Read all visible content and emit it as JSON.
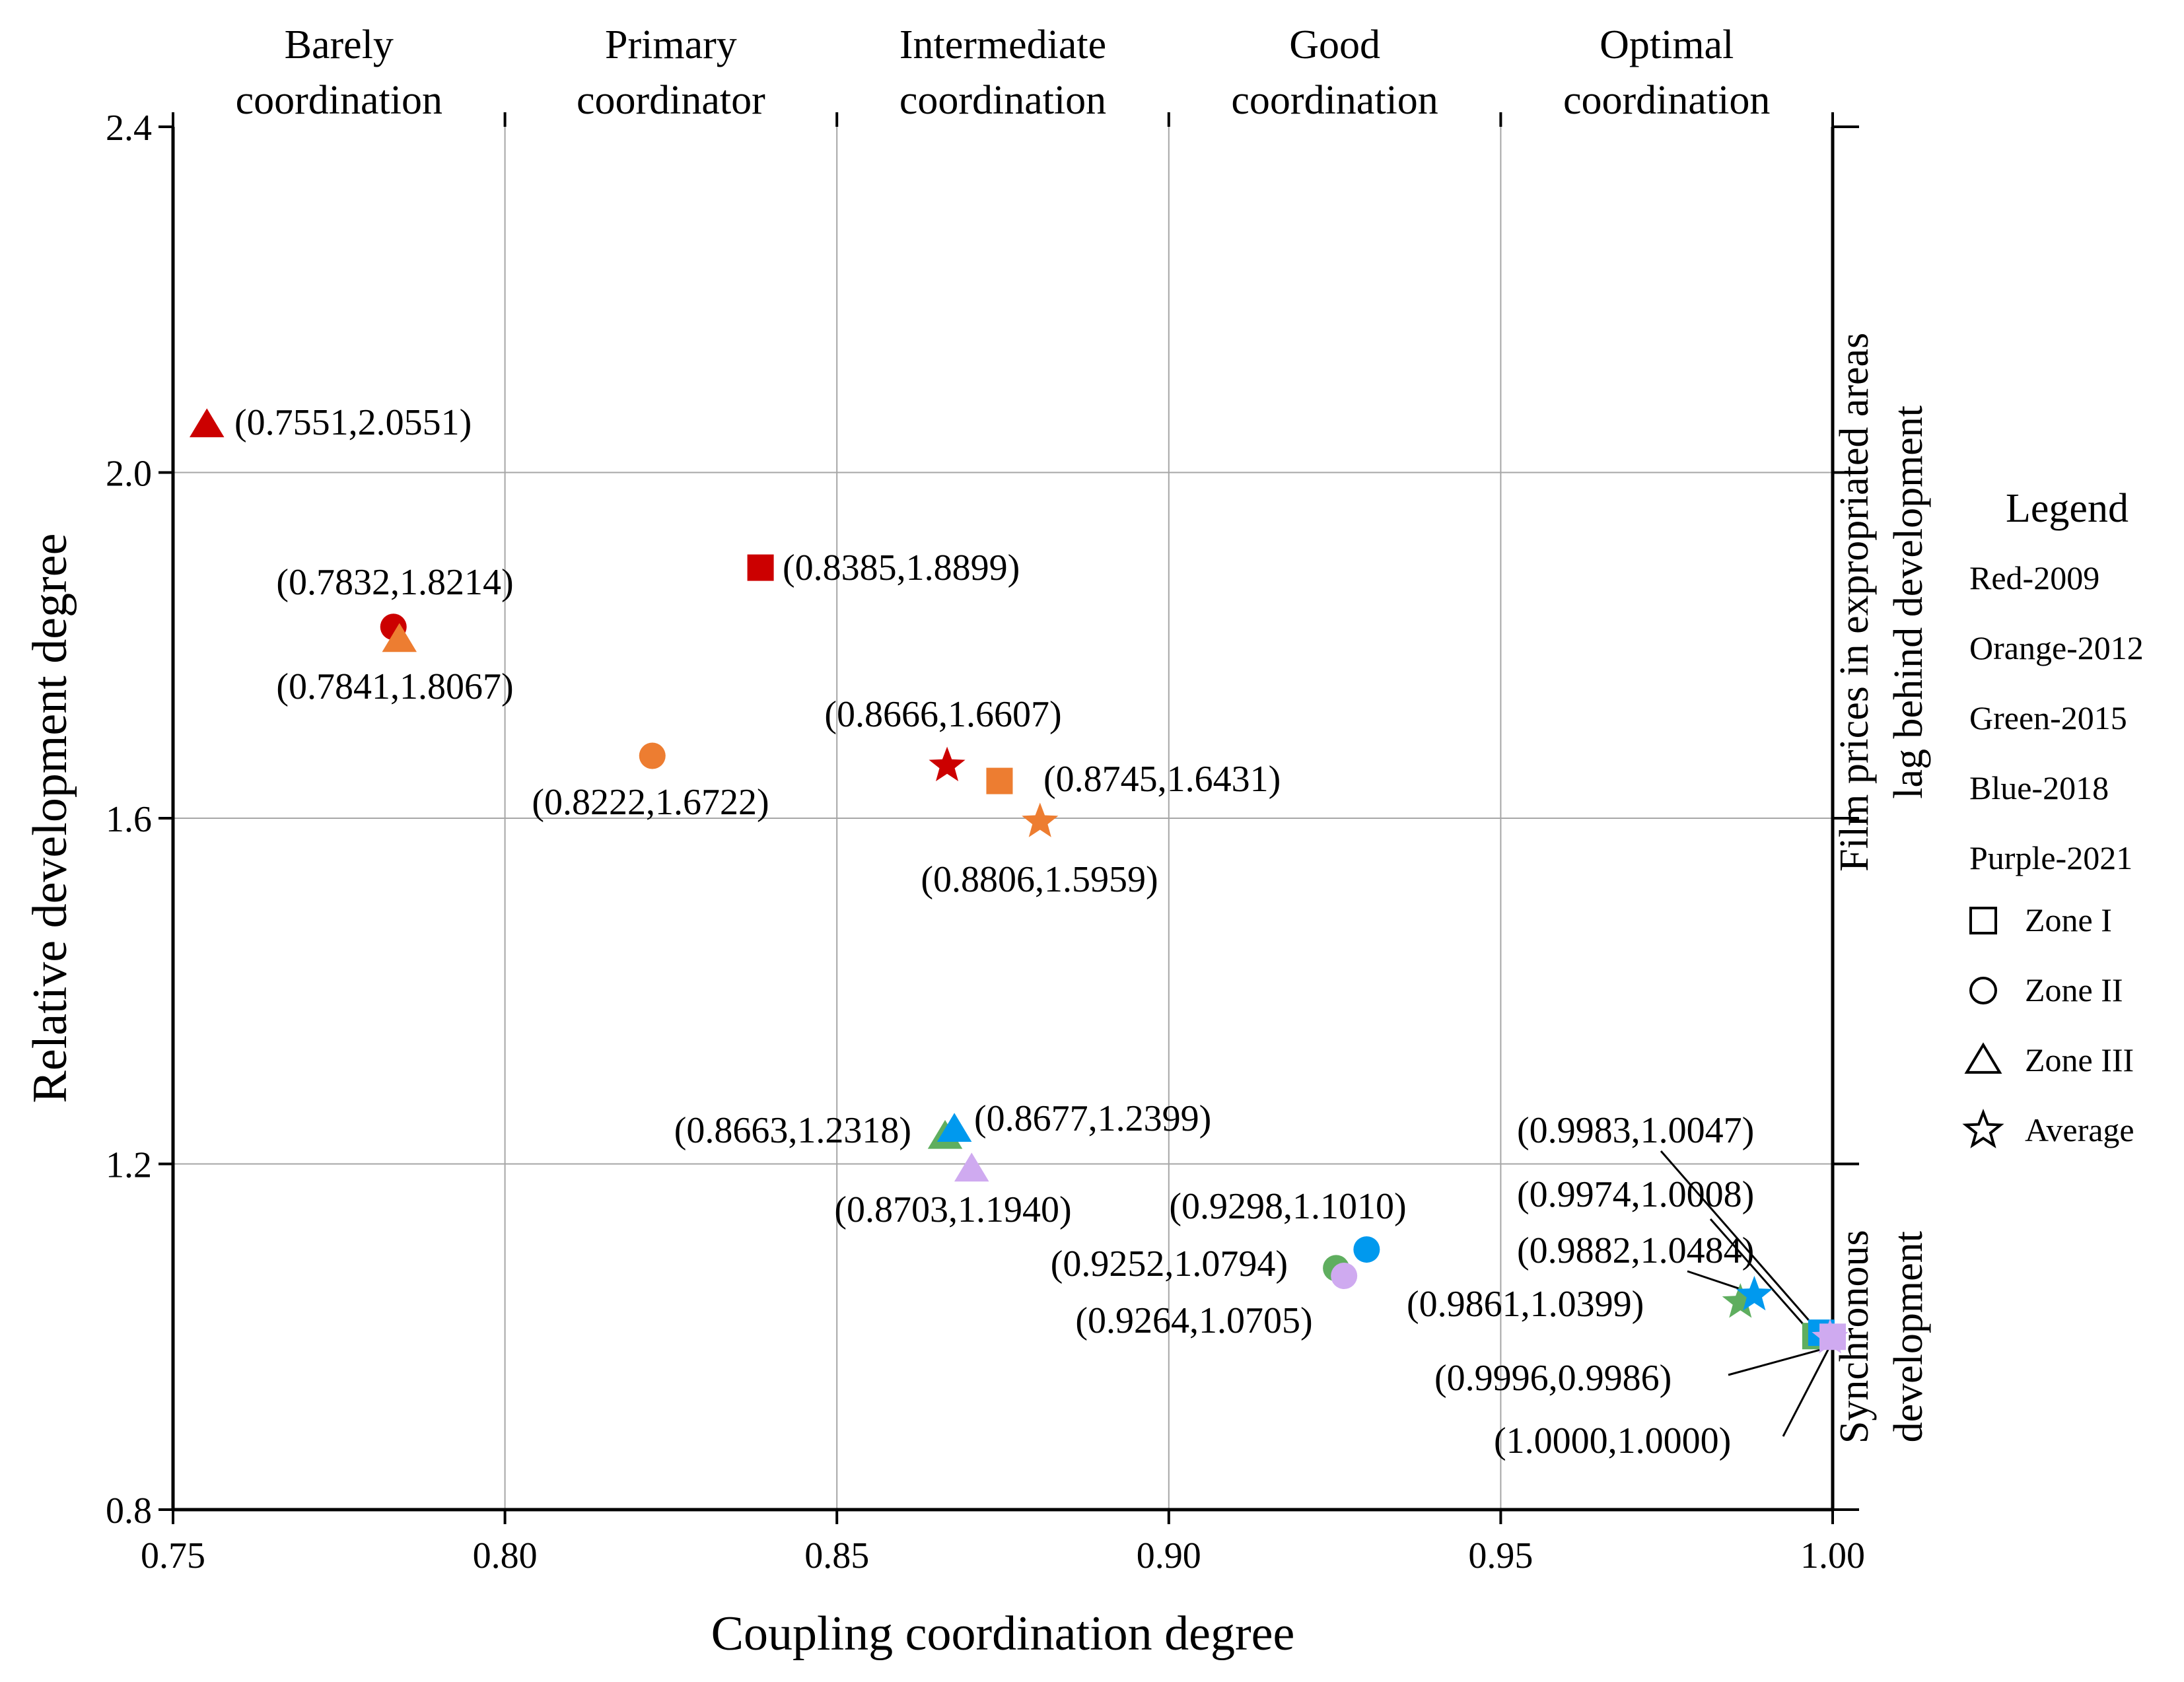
{
  "chart_data": {
    "type": "scatter",
    "xlabel": "Coupling coordination degree",
    "ylabel": "Relative development degree",
    "xlim": [
      0.75,
      1.0
    ],
    "ylim": [
      0.8,
      2.4
    ],
    "x_ticks": [
      "0.75",
      "0.80",
      "0.85",
      "0.90",
      "0.95",
      "1.00"
    ],
    "y_ticks": [
      "0.8",
      "1.2",
      "1.6",
      "2.0",
      "2.4"
    ],
    "grid": true,
    "top_categories": [
      {
        "line1": "Barely",
        "line2": "coordination",
        "x_range": [
          0.75,
          0.8
        ]
      },
      {
        "line1": "Primary",
        "line2": "coordinator",
        "x_range": [
          0.8,
          0.85
        ]
      },
      {
        "line1": "Intermediate",
        "line2": "coordination",
        "x_range": [
          0.85,
          0.9
        ]
      },
      {
        "line1": "Good",
        "line2": "coordination",
        "x_range": [
          0.9,
          0.95
        ]
      },
      {
        "line1": "Optimal",
        "line2": "coordination",
        "x_range": [
          0.95,
          1.0
        ]
      }
    ],
    "right_regions": [
      {
        "line1": "Film prices in expropriated areas",
        "line2": "lag behind development",
        "y_range": [
          1.2,
          2.4
        ]
      },
      {
        "line1": "Synchronous",
        "line2": "development",
        "y_range": [
          0.8,
          1.2
        ]
      }
    ],
    "legend": {
      "title": "Legend",
      "colors": [
        {
          "label": "Red-2009",
          "color": "#cc0000"
        },
        {
          "label": "Orange-2012",
          "color": "#ed7d31"
        },
        {
          "label": "Green-2015",
          "color": "#5fae5f"
        },
        {
          "label": "Blue-2018",
          "color": "#0099ee"
        },
        {
          "label": "Purple-2021",
          "color": "#cfaaf0"
        }
      ],
      "shapes": [
        {
          "label": "Zone I",
          "shape": "square"
        },
        {
          "label": "Zone II",
          "shape": "circle"
        },
        {
          "label": "Zone III",
          "shape": "triangle"
        },
        {
          "label": "Average",
          "shape": "star"
        }
      ]
    },
    "points": [
      {
        "x": 0.7551,
        "y": 2.0551,
        "year": "2009",
        "color": "#cc0000",
        "shape": "triangle",
        "label": "(0.7551,2.0551)"
      },
      {
        "x": 0.7832,
        "y": 1.8214,
        "year": "2009",
        "color": "#cc0000",
        "shape": "circle",
        "label": "(0.7832,1.8214)"
      },
      {
        "x": 0.7841,
        "y": 1.8067,
        "year": "2012",
        "color": "#ed7d31",
        "shape": "triangle",
        "label": "(0.7841,1.8067)"
      },
      {
        "x": 0.8385,
        "y": 1.8899,
        "year": "2009",
        "color": "#cc0000",
        "shape": "square",
        "label": "(0.8385,1.8899)"
      },
      {
        "x": 0.8222,
        "y": 1.6722,
        "year": "2012",
        "color": "#ed7d31",
        "shape": "circle",
        "label": "(0.8222,1.6722)"
      },
      {
        "x": 0.8666,
        "y": 1.6607,
        "year": "2009",
        "color": "#cc0000",
        "shape": "star",
        "label": "(0.8666,1.6607)"
      },
      {
        "x": 0.8745,
        "y": 1.6431,
        "year": "2012",
        "color": "#ed7d31",
        "shape": "square",
        "label": "(0.8745,1.6431)"
      },
      {
        "x": 0.8806,
        "y": 1.5959,
        "year": "2012",
        "color": "#ed7d31",
        "shape": "star",
        "label": "(0.8806,1.5959)"
      },
      {
        "x": 0.8663,
        "y": 1.2318,
        "year": "2015",
        "color": "#5fae5f",
        "shape": "triangle",
        "label": "(0.8663,1.2318)"
      },
      {
        "x": 0.8677,
        "y": 1.2399,
        "year": "2018",
        "color": "#0099ee",
        "shape": "triangle",
        "label": "(0.8677,1.2399)"
      },
      {
        "x": 0.8703,
        "y": 1.194,
        "year": "2021",
        "color": "#cfaaf0",
        "shape": "triangle",
        "label": "(0.8703,1.1940)"
      },
      {
        "x": 0.9252,
        "y": 1.0794,
        "year": "2015",
        "color": "#5fae5f",
        "shape": "circle",
        "label": "(0.9252,1.0794)"
      },
      {
        "x": 0.9298,
        "y": 1.101,
        "year": "2018",
        "color": "#0099ee",
        "shape": "circle",
        "label": "(0.9298,1.1010)"
      },
      {
        "x": 0.9264,
        "y": 1.0705,
        "year": "2021",
        "color": "#cfaaf0",
        "shape": "circle",
        "label": "(0.9264,1.0705)"
      },
      {
        "x": 0.9861,
        "y": 1.0399,
        "year": "2015",
        "color": "#5fae5f",
        "shape": "star",
        "label": "(0.9861,1.0399)"
      },
      {
        "x": 0.9882,
        "y": 1.0484,
        "year": "2018",
        "color": "#0099ee",
        "shape": "star",
        "label": "(0.9882,1.0484)"
      },
      {
        "x": 0.9974,
        "y": 1.0008,
        "year": "2015",
        "color": "#5fae5f",
        "shape": "square",
        "label": "(0.9974,1.0008)"
      },
      {
        "x": 0.9983,
        "y": 1.0047,
        "year": "2018",
        "color": "#0099ee",
        "shape": "square",
        "label": "(0.9983,1.0047)"
      },
      {
        "x": 0.9996,
        "y": 0.9986,
        "year": "2021",
        "color": "#cfaaf0",
        "shape": "star",
        "label": "(0.9996,0.9986)"
      },
      {
        "x": 1.0,
        "y": 1.0,
        "year": "2021",
        "color": "#cfaaf0",
        "shape": "square",
        "label": "(1.0000,1.0000)"
      }
    ]
  }
}
